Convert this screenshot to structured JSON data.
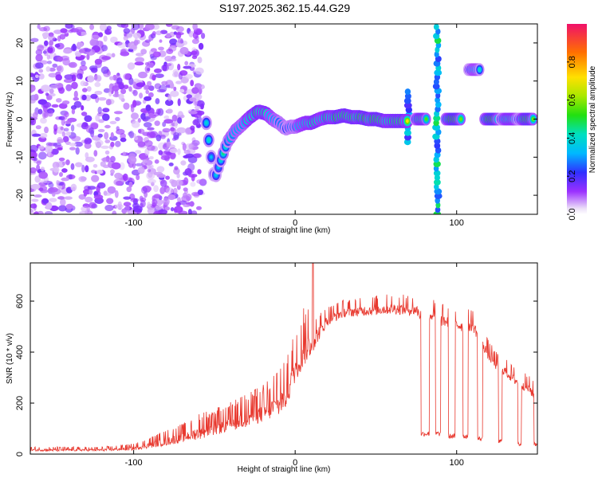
{
  "title": "S197.2025.362.15.44.G29",
  "chart_data": [
    {
      "type": "heatmap",
      "name": "spectrogram",
      "xlabel": "Height of straight line (km)",
      "ylabel": "Frequency (Hz)",
      "xlim": [
        -164,
        150
      ],
      "ylim": [
        -25,
        25
      ],
      "xticks": [
        -100,
        0,
        100
      ],
      "yticks": [
        -20,
        -10,
        0,
        10,
        20
      ],
      "colorbar": {
        "label": "Normalized spectral amplitude",
        "range": [
          0,
          1
        ],
        "ticks": [
          "0.0",
          "0.2",
          "0.4",
          "0.6",
          "0.8"
        ],
        "tick_values": [
          0,
          0.2,
          0.4,
          0.6,
          0.8
        ]
      },
      "noise_region": {
        "x": [
          -164,
          -57
        ],
        "note": "scattered low-amplitude speckle"
      },
      "ridge": {
        "x": [
          -55,
          -50,
          -47,
          -42,
          -37,
          -33,
          -28,
          -23,
          -18,
          -14,
          -10,
          -6,
          -3,
          0,
          3,
          6,
          10,
          15,
          20,
          25,
          30,
          35,
          40,
          45,
          50,
          55,
          60,
          65,
          70
        ],
        "freq": [
          -1,
          -16,
          -12,
          -6,
          -3,
          -1.5,
          0.5,
          2,
          1.5,
          0,
          -1,
          -2.5,
          -2,
          -2,
          -1.5,
          -1,
          -1,
          0,
          0.5,
          0.5,
          1,
          0.5,
          0.5,
          0,
          0,
          -0.5,
          -0.5,
          -0.5,
          -0.5
        ],
        "amp": [
          0.45,
          0.35,
          0.4,
          0.5,
          0.55,
          0.6,
          0.7,
          0.85,
          0.8,
          0.6,
          0.5,
          0.45,
          0.5,
          0.55,
          0.6,
          0.7,
          0.8,
          0.75,
          0.8,
          0.85,
          0.9,
          0.85,
          0.85,
          0.9,
          0.9,
          0.85,
          0.85,
          0.85,
          0.8
        ]
      },
      "segments": [
        {
          "x": [
            74,
            82
          ],
          "freq": 0,
          "amp": 0.8
        },
        {
          "x": [
            93,
            103
          ],
          "freq": 0,
          "amp": 0.95
        },
        {
          "x": [
            107,
            115
          ],
          "freq": 13,
          "amp": 0.6
        },
        {
          "x": [
            117,
            126
          ],
          "freq": 0,
          "amp": 0.95
        },
        {
          "x": [
            127,
            138
          ],
          "freq": 0,
          "amp": 0.75
        },
        {
          "x": [
            139,
            148
          ],
          "freq": 0,
          "amp": 0.9
        }
      ],
      "vertical_streaks": [
        {
          "x": 70,
          "freq": [
            -6,
            8
          ],
          "amp": 0.35
        },
        {
          "x": 88,
          "freq": [
            -25,
            25
          ],
          "amp": 0.45
        }
      ]
    },
    {
      "type": "line",
      "name": "snr",
      "xlabel": "Height of straight line (km)",
      "ylabel": "SNR (10 * v/v)",
      "xlim": [
        -164,
        150
      ],
      "ylim": [
        0,
        750
      ],
      "xticks": [
        -100,
        0,
        100
      ],
      "yticks": [
        0,
        200,
        400,
        600
      ],
      "color": "#e8382e",
      "envelope": {
        "x": [
          -164,
          -140,
          -120,
          -100,
          -80,
          -60,
          -45,
          -30,
          -20,
          -10,
          -5,
          0,
          5,
          10,
          15,
          20,
          30,
          40,
          50,
          60,
          70,
          75,
          80,
          85,
          90,
          95,
          100,
          105,
          110,
          115,
          120,
          125,
          130,
          135,
          140,
          145,
          150
        ],
        "base": [
          15,
          15,
          15,
          20,
          45,
          75,
          100,
          130,
          150,
          180,
          220,
          320,
          380,
          420,
          470,
          520,
          550,
          555,
          560,
          565,
          560,
          560,
          520,
          540,
          520,
          510,
          500,
          495,
          500,
          440,
          380,
          340,
          320,
          290,
          270,
          250,
          210
        ],
        "noise": [
          10,
          10,
          10,
          15,
          35,
          50,
          55,
          65,
          75,
          90,
          100,
          100,
          120,
          90,
          60,
          45,
          40,
          40,
          45,
          45,
          45,
          45,
          50,
          50,
          50,
          50,
          50,
          50,
          50,
          45,
          45,
          40,
          40,
          40,
          40,
          40,
          40
        ]
      },
      "dropouts": [
        {
          "x": [
            78,
            83
          ],
          "value": 80
        },
        {
          "x": [
            87,
            90
          ],
          "value": 80
        },
        {
          "x": [
            95,
            99
          ],
          "value": 70
        },
        {
          "x": [
            104,
            107
          ],
          "value": 70
        },
        {
          "x": [
            113,
            116
          ],
          "value": 60
        },
        {
          "x": [
            126,
            128
          ],
          "value": 50
        },
        {
          "x": [
            138,
            140
          ],
          "value": 40
        },
        {
          "x": [
            148,
            150
          ],
          "value": 40
        }
      ],
      "spike": {
        "x": 11,
        "value": 750
      }
    }
  ]
}
